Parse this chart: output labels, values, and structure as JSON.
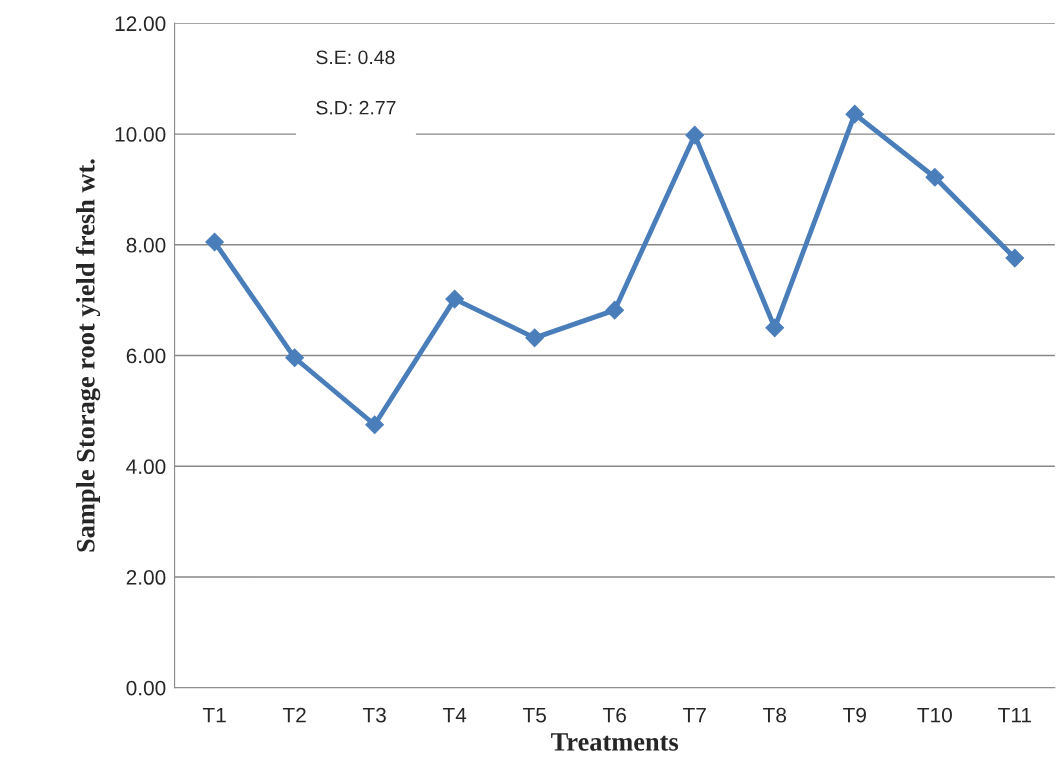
{
  "chart_data": {
    "type": "line",
    "xlabel": "Treatments",
    "ylabel": "Sample Storage root yield fresh wt.",
    "categories": [
      "T1",
      "T2",
      "T3",
      "T4",
      "T5",
      "T6",
      "T7",
      "T8",
      "T9",
      "T10",
      "T11"
    ],
    "series": [
      {
        "color": "#4a7ebb",
        "values": [
          8.05,
          5.96,
          4.75,
          7.02,
          6.32,
          6.82,
          9.98,
          6.5,
          10.36,
          9.22,
          7.76
        ]
      }
    ],
    "ylim": [
      0,
      12
    ],
    "yticks": [
      {
        "value": 0,
        "label": "0.00"
      },
      {
        "value": 2,
        "label": "2.00"
      },
      {
        "value": 4,
        "label": "4.00"
      },
      {
        "value": 6,
        "label": "6.00"
      },
      {
        "value": 8,
        "label": "8.00"
      },
      {
        "value": 10,
        "label": "10.00"
      },
      {
        "value": 12,
        "label": "12.00"
      }
    ],
    "grid": "y",
    "marker": "diamond",
    "line_style": "solid",
    "legend": false,
    "annotations": [
      "S.E: 0.48",
      "S.D: 2.77"
    ]
  }
}
